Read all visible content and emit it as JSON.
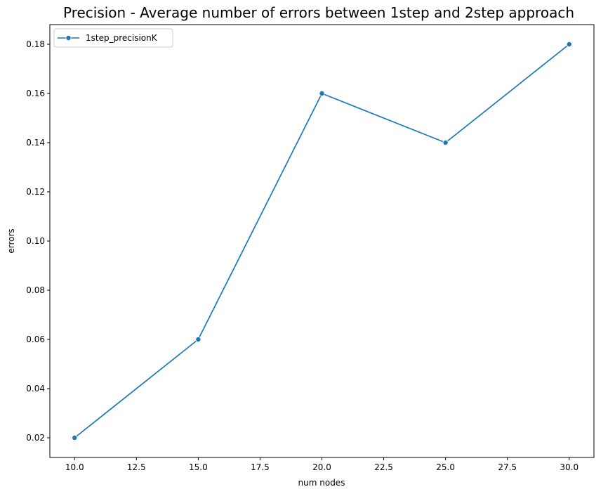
{
  "chart_data": {
    "type": "line",
    "title": "Precision - Average number of errors between 1step and 2step approach",
    "xlabel": "num nodes",
    "ylabel": "errors",
    "x_ticks": [
      "10.0",
      "12.5",
      "15.0",
      "17.5",
      "20.0",
      "22.5",
      "25.0",
      "27.5",
      "30.0"
    ],
    "y_ticks": [
      "0.02",
      "0.04",
      "0.06",
      "0.08",
      "0.10",
      "0.12",
      "0.14",
      "0.16",
      "0.18"
    ],
    "xlim": [
      9.0,
      31.0
    ],
    "ylim": [
      0.012,
      0.188
    ],
    "grid": false,
    "legend_position": "top-left",
    "series": [
      {
        "name": "1step_precisionK",
        "color": "#1f77b4",
        "marker": "circle",
        "x": [
          10,
          15,
          20,
          25,
          30
        ],
        "y": [
          0.02,
          0.06,
          0.16,
          0.14,
          0.18
        ]
      }
    ]
  }
}
